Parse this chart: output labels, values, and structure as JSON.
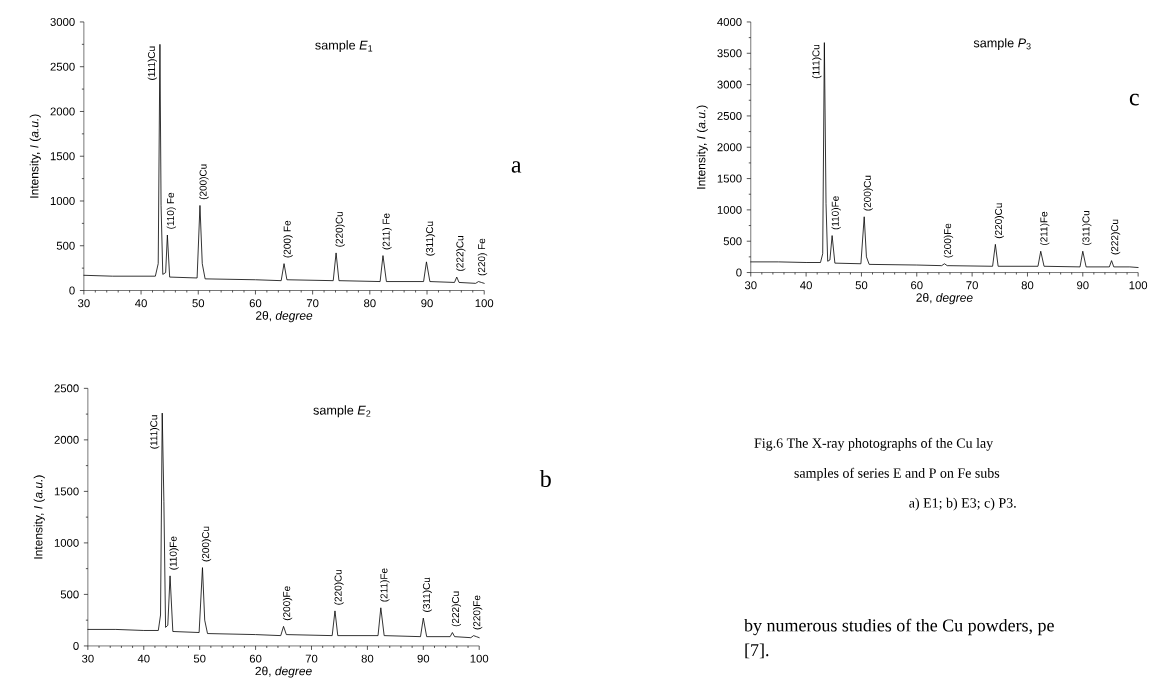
{
  "chart_data": [
    {
      "type": "line",
      "title": "sample *E*$_{1}$",
      "xlabel": "2θ, *degree*",
      "ylabel": "Intensity, *I* (*a.u.*)",
      "color": "#000000",
      "xlim": [
        30,
        100
      ],
      "ylim": [
        0,
        3000
      ],
      "xticks": [
        30,
        40,
        50,
        60,
        70,
        80,
        90,
        100
      ],
      "yticks": [
        0,
        500,
        1000,
        1500,
        2000,
        2500,
        3000
      ],
      "x": [
        30,
        35,
        40,
        42.5,
        43.0,
        43.3,
        43.5,
        43.8,
        44.3,
        44.6,
        45.0,
        49.8,
        50.3,
        50.7,
        51.2,
        60,
        64.5,
        65.0,
        65.5,
        73.6,
        74.1,
        74.6,
        81.8,
        82.3,
        82.9,
        89.4,
        89.9,
        90.5,
        94.8,
        95.2,
        95.6,
        98.5,
        99.0,
        99.5,
        100
      ],
      "values": [
        170,
        160,
        160,
        160,
        300,
        2750,
        950,
        180,
        200,
        620,
        150,
        140,
        950,
        300,
        130,
        120,
        110,
        300,
        120,
        110,
        420,
        110,
        100,
        390,
        100,
        100,
        320,
        100,
        90,
        150,
        90,
        80,
        100,
        90,
        80
      ],
      "annotations": [
        "a",
        {
          "text": "(111)Cu",
          "x": 43.3,
          "y": 2750
        },
        {
          "text": "(110) Fe",
          "x": 44.6,
          "y": 620
        },
        {
          "text": "(200)Cu",
          "x": 50.3,
          "y": 950
        },
        {
          "text": "(200) Fe",
          "x": 65.0,
          "y": 300
        },
        {
          "text": "(220)Cu",
          "x": 74.1,
          "y": 420
        },
        {
          "text": "(211) Fe",
          "x": 82.3,
          "y": 390
        },
        {
          "text": "(311)Cu",
          "x": 89.9,
          "y": 320
        },
        {
          "text": "(222)Cu",
          "x": 95.2,
          "y": 150
        },
        {
          "text": "(220) Fe",
          "x": 99.0,
          "y": 100
        }
      ]
    },
    {
      "type": "line",
      "title": "sample *E*$_{2}$",
      "xlabel": "2θ, *degree*",
      "ylabel": "Intensity, *I* (*a.u.*)",
      "color": "#000000",
      "xlim": [
        30,
        100
      ],
      "ylim": [
        0,
        2500
      ],
      "xticks": [
        30,
        40,
        50,
        60,
        70,
        80,
        90,
        100
      ],
      "yticks": [
        0,
        500,
        1000,
        1500,
        2000,
        2500
      ],
      "x": [
        30,
        35,
        40,
        42.6,
        43.0,
        43.3,
        43.6,
        43.9,
        44.3,
        44.7,
        45.2,
        49.9,
        50.5,
        50.9,
        51.4,
        60,
        64.5,
        65.0,
        65.5,
        73.7,
        74.2,
        74.7,
        81.9,
        82.4,
        83.0,
        89.5,
        90.0,
        90.6,
        94.8,
        95.2,
        95.6,
        98.5,
        99.0,
        99.5,
        100
      ],
      "values": [
        160,
        160,
        150,
        150,
        300,
        2260,
        1400,
        180,
        200,
        680,
        140,
        130,
        760,
        250,
        120,
        110,
        100,
        190,
        110,
        100,
        340,
        100,
        100,
        370,
        100,
        90,
        270,
        90,
        90,
        130,
        90,
        80,
        100,
        90,
        80
      ],
      "annotations": [
        "b",
        {
          "text": "(111)Cu",
          "x": 43.3,
          "y": 2260
        },
        {
          "text": "(110)Fe",
          "x": 44.7,
          "y": 680
        },
        {
          "text": "(200)Cu",
          "x": 50.5,
          "y": 760
        },
        {
          "text": "(200)Fe",
          "x": 65.0,
          "y": 190
        },
        {
          "text": "(220)Cu",
          "x": 74.2,
          "y": 340
        },
        {
          "text": "(211)Fe",
          "x": 82.4,
          "y": 370
        },
        {
          "text": "(311)Cu",
          "x": 90.0,
          "y": 270
        },
        {
          "text": "(222)Cu",
          "x": 95.2,
          "y": 130
        },
        {
          "text": "(220)Fe",
          "x": 99.0,
          "y": 100
        }
      ]
    },
    {
      "type": "line",
      "title": "sample *P*$_{3}$",
      "xlabel": "2θ, *degree*",
      "ylabel": "Intensity, *I* (*a.u.*)",
      "color": "#000000",
      "xlim": [
        30,
        100
      ],
      "ylim": [
        0,
        4000
      ],
      "xticks": [
        30,
        40,
        50,
        60,
        70,
        80,
        90,
        100
      ],
      "yticks": [
        0,
        500,
        1000,
        1500,
        2000,
        2500,
        3000,
        3500,
        4000
      ],
      "x": [
        30,
        35,
        40,
        42.6,
        43.0,
        43.3,
        43.6,
        43.9,
        44.3,
        44.7,
        45.2,
        49.9,
        50.5,
        50.9,
        51.4,
        60,
        64.5,
        65.0,
        65.5,
        73.7,
        74.2,
        74.7,
        81.9,
        82.4,
        83.0,
        89.5,
        90.0,
        90.6,
        94.8,
        95.2,
        95.6,
        98.5,
        100
      ],
      "values": [
        170,
        170,
        160,
        160,
        300,
        3670,
        1100,
        180,
        200,
        590,
        150,
        140,
        890,
        250,
        130,
        120,
        110,
        140,
        110,
        100,
        450,
        100,
        100,
        340,
        100,
        90,
        340,
        90,
        90,
        190,
        90,
        90,
        80
      ],
      "annotations": [
        "c",
        {
          "text": "(111)Cu",
          "x": 43.3,
          "y": 3670
        },
        {
          "text": "(110)Fe",
          "x": 44.7,
          "y": 590
        },
        {
          "text": "(200)Cu",
          "x": 50.5,
          "y": 890
        },
        {
          "text": "(200)Fe",
          "x": 65.0,
          "y": 140
        },
        {
          "text": "(220)Cu",
          "x": 74.2,
          "y": 450
        },
        {
          "text": "(211)Fe",
          "x": 82.4,
          "y": 340
        },
        {
          "text": "(311)Cu",
          "x": 90.0,
          "y": 340
        },
        {
          "text": "(222)Cu",
          "x": 95.2,
          "y": 190
        }
      ]
    },
    {
      "type": "other",
      "annotations": [
        "Fig.6 The X-ray photographs of the Cu lay",
        "samples of series E and P on Fe subs",
        "a) E1; b) E3; c) P3.",
        "by numerous studies of the Cu powders, pe",
        "[7]."
      ]
    }
  ]
}
